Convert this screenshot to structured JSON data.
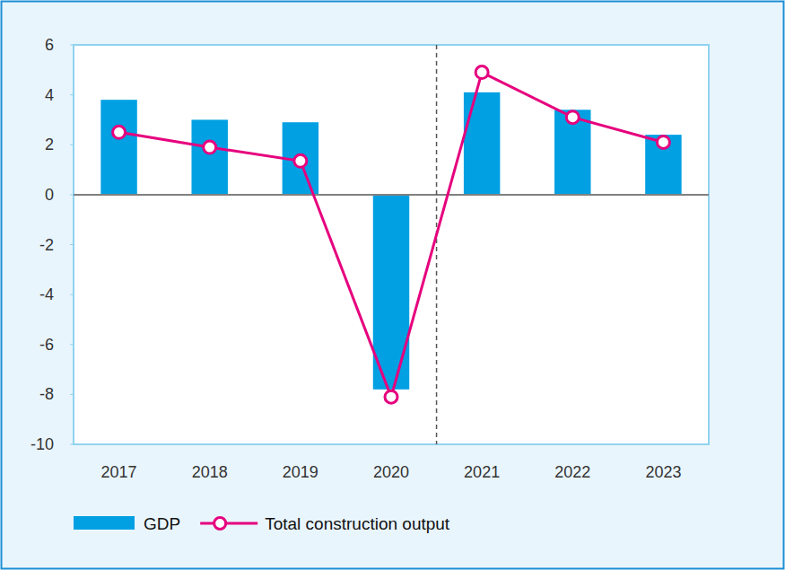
{
  "chart_data": {
    "type": "bar",
    "categories": [
      "2017",
      "2018",
      "2019",
      "2020",
      "2021",
      "2022",
      "2023"
    ],
    "series": [
      {
        "name": "GDP",
        "type": "bar",
        "color": "#00a0e3",
        "values": [
          3.8,
          3.0,
          2.9,
          -7.8,
          4.1,
          3.4,
          2.4
        ]
      },
      {
        "name": "Total construction output",
        "type": "line",
        "color": "#e6007e",
        "marker": "circle",
        "line_style": "solid",
        "values": [
          2.5,
          1.9,
          1.35,
          -8.1,
          4.9,
          3.1,
          2.1
        ]
      }
    ],
    "ylim": [
      -10,
      6
    ],
    "yticks": [
      -10,
      -8,
      -6,
      -4,
      -2,
      0,
      2,
      4,
      6
    ],
    "grid": false,
    "legend": "bottom"
  }
}
